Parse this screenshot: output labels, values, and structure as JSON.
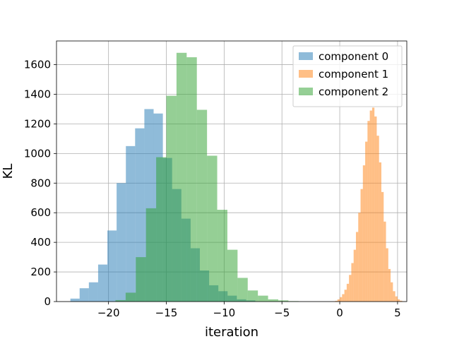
{
  "chart_data": {
    "type": "histogram",
    "title": "",
    "xlabel": "iteration",
    "ylabel": "KL",
    "xlim": [
      -24.5,
      5.8
    ],
    "ylim": [
      0,
      1760
    ],
    "xticks": [
      -20,
      -15,
      -10,
      -5,
      0,
      5
    ],
    "xtick_labels": [
      "−20",
      "−15",
      "−10",
      "−5",
      "0",
      "5"
    ],
    "yticks": [
      0,
      200,
      400,
      600,
      800,
      1000,
      1200,
      1400,
      1600
    ],
    "ytick_labels": [
      "0",
      "200",
      "400",
      "600",
      "800",
      "1000",
      "1200",
      "1400",
      "1600"
    ],
    "grid": true,
    "legend_position": "top-right",
    "series": [
      {
        "name": "component 0",
        "color": "#1f77b4",
        "alpha": 0.5,
        "bin_start": -23.3,
        "bin_width": 0.8,
        "counts": [
          20,
          90,
          130,
          250,
          480,
          800,
          1050,
          1170,
          1300,
          1270,
          970,
          760,
          560,
          360,
          210,
          110,
          70,
          40,
          15,
          8
        ]
      },
      {
        "name": "component 1",
        "color": "#ff7f0e",
        "alpha": 0.5,
        "bin_start": -0.6,
        "bin_width": 0.2,
        "counts": [
          2,
          5,
          15,
          30,
          50,
          80,
          120,
          180,
          260,
          350,
          470,
          600,
          760,
          920,
          1080,
          1220,
          1290,
          1310,
          1250,
          1120,
          940,
          740,
          540,
          360,
          220,
          130,
          70,
          35,
          15,
          6,
          2
        ]
      },
      {
        "name": "component 2",
        "color": "#2ca02c",
        "alpha": 0.5,
        "bin_start": -19.4,
        "bin_width": 0.88,
        "counts": [
          10,
          60,
          300,
          630,
          975,
          1390,
          1680,
          1650,
          1295,
          985,
          620,
          350,
          160,
          75,
          40,
          15,
          8,
          3
        ]
      }
    ]
  }
}
